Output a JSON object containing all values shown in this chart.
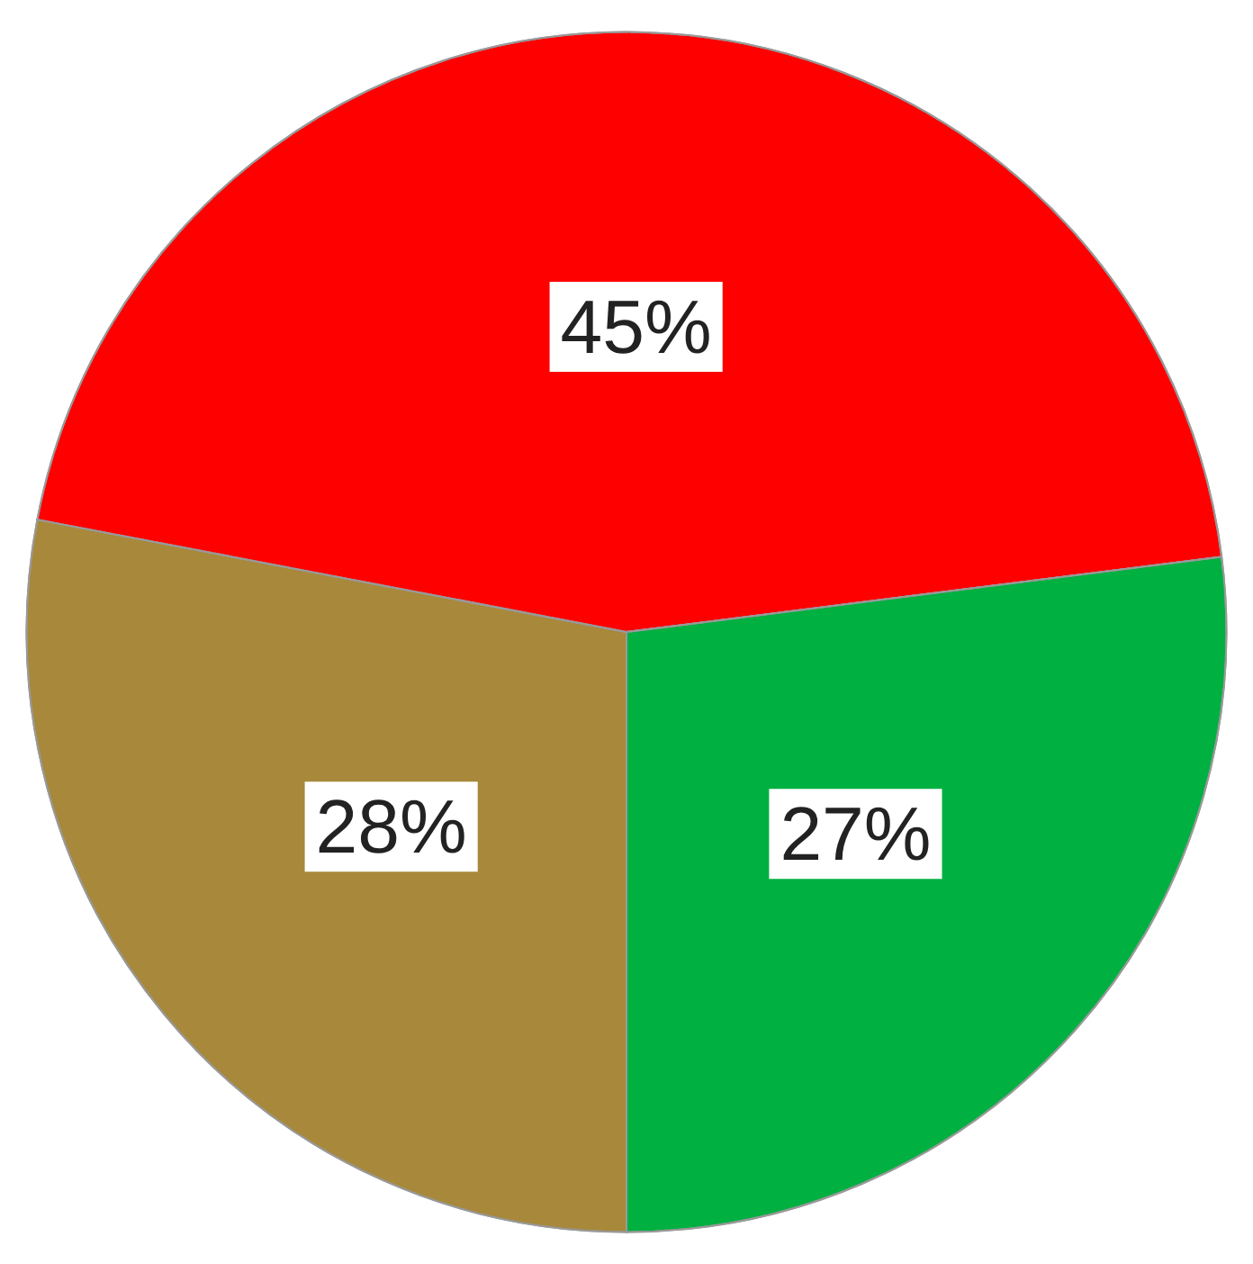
{
  "chart_data": {
    "type": "pie",
    "categories": [
      null,
      null,
      null
    ],
    "values": [
      28,
      45,
      27
    ],
    "colors": [
      "#a8883a",
      "#ff0000",
      "#00b040"
    ],
    "value_labels": [
      "28%",
      "45%",
      "27%"
    ]
  }
}
